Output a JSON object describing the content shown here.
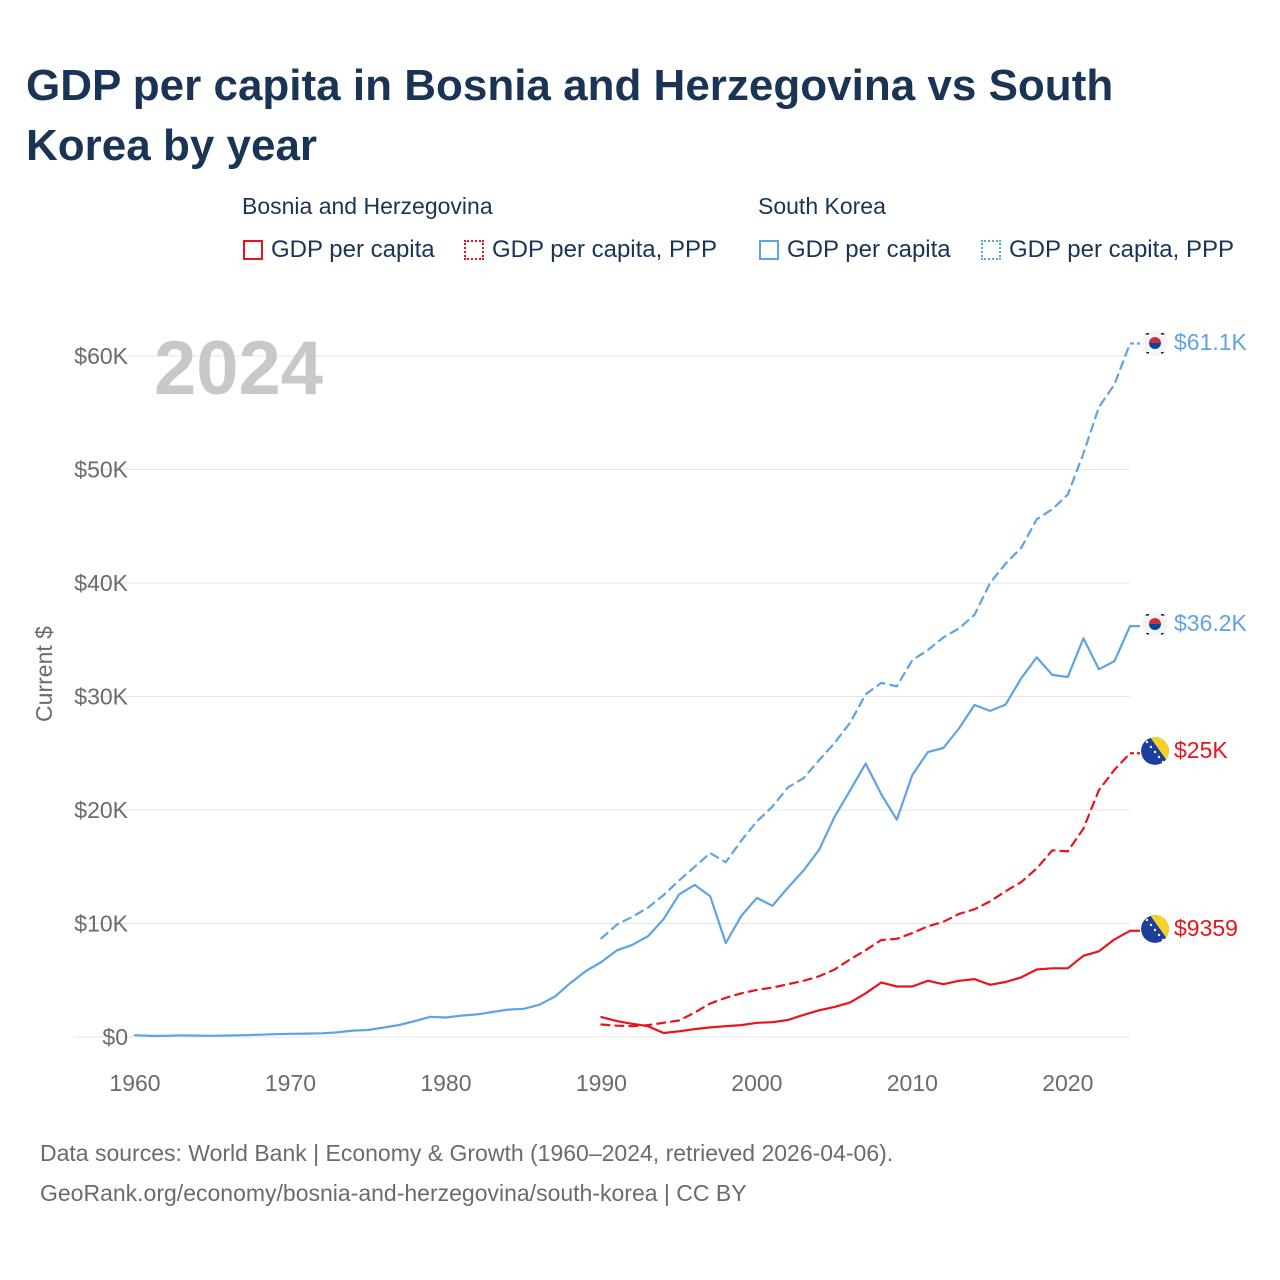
{
  "title": "GDP per capita in Bosnia and Herzegovina vs South Korea by year",
  "legend": {
    "groups": [
      {
        "name": "Bosnia and Herzegovina",
        "items": [
          "GDP per capita",
          "GDP per capita, PPP"
        ]
      },
      {
        "name": "South Korea",
        "items": [
          "GDP per capita",
          "GDP per capita, PPP"
        ]
      }
    ]
  },
  "footer": {
    "line1": "Data sources: World Bank | Economy & Growth (1960–2024, retrieved 2026-04-06).",
    "line2": "GeoRank.org/economy/bosnia-and-herzegovina/south-korea | CC BY"
  },
  "colors": {
    "bosnia": "#e8141b",
    "korea": "#5ea3e4",
    "grid": "#e6e6e6",
    "axis_text": "#6b6b6b",
    "year_watermark": "#c8c8c8"
  },
  "chart_data": {
    "type": "line",
    "title": "GDP per capita in Bosnia and Herzegovina vs South Korea by year",
    "ylabel": "Current $",
    "xlabel": "",
    "xlim": [
      1960,
      2024
    ],
    "ylim": [
      0,
      60000
    ],
    "x_ticks": [
      1960,
      1970,
      1980,
      1990,
      2000,
      2010,
      2020
    ],
    "y_ticks": [
      0,
      10000,
      20000,
      30000,
      40000,
      50000,
      60000
    ],
    "y_tick_labels": [
      "$0",
      "$10K",
      "$20K",
      "$30K",
      "$40K",
      "$50K",
      "$60K"
    ],
    "year_label": "2024",
    "grid": true,
    "series": [
      {
        "name": "South Korea GDP per capita",
        "country": "South Korea",
        "style": "solid",
        "color": "#5ea3e4",
        "end_label": "$36.2K",
        "x": [
          1960,
          1961,
          1962,
          1963,
          1964,
          1965,
          1966,
          1967,
          1968,
          1969,
          1970,
          1971,
          1972,
          1973,
          1974,
          1975,
          1976,
          1977,
          1978,
          1979,
          1980,
          1981,
          1982,
          1983,
          1984,
          1985,
          1986,
          1987,
          1988,
          1989,
          1990,
          1991,
          1992,
          1993,
          1994,
          1995,
          1996,
          1997,
          1998,
          1999,
          2000,
          2001,
          2002,
          2003,
          2004,
          2005,
          2006,
          2007,
          2008,
          2009,
          2010,
          2011,
          2012,
          2013,
          2014,
          2015,
          2016,
          2017,
          2018,
          2019,
          2020,
          2021,
          2022,
          2023,
          2024
        ],
        "y": [
          158,
          94,
          107,
          146,
          124,
          109,
          133,
          161,
          199,
          247,
          279,
          301,
          324,
          406,
          563,
          616,
          834,
          1055,
          1405,
          1784,
          1715,
          1883,
          1992,
          2199,
          2413,
          2482,
          2835,
          3555,
          4749,
          5811,
          6610,
          7637,
          8127,
          8885,
          10385,
          12564,
          13403,
          12398,
          8282,
          10672,
          12257,
          11561,
          13165,
          14673,
          16496,
          19403,
          21744,
          24086,
          21387,
          19143,
          23087,
          25098,
          25459,
          27180,
          29249,
          28732,
          29289,
          31601,
          33447,
          31902,
          31721,
          35126,
          32395,
          33121,
          36200
        ]
      },
      {
        "name": "South Korea GDP per capita, PPP",
        "country": "South Korea",
        "style": "dashed",
        "color": "#5ea3e4",
        "end_label": "$61.1K",
        "x": [
          1990,
          1991,
          1992,
          1993,
          1994,
          1995,
          1996,
          1997,
          1998,
          1999,
          2000,
          2001,
          2002,
          2003,
          2004,
          2005,
          2006,
          2007,
          2008,
          2009,
          2010,
          2011,
          2012,
          2013,
          2014,
          2015,
          2016,
          2017,
          2018,
          2019,
          2020,
          2021,
          2022,
          2023,
          2024
        ],
        "y": [
          8700,
          9900,
          10600,
          11400,
          12500,
          13800,
          15000,
          16200,
          15400,
          17300,
          19000,
          20300,
          22000,
          22800,
          24400,
          25900,
          27700,
          30200,
          31200,
          30900,
          33200,
          34100,
          35200,
          36000,
          37200,
          40000,
          41700,
          43100,
          45600,
          46500,
          47800,
          51400,
          55500,
          57500,
          61100
        ]
      },
      {
        "name": "Bosnia and Herzegovina GDP per capita",
        "country": "Bosnia and Herzegovina",
        "style": "solid",
        "color": "#e8141b",
        "end_label": "$9359",
        "x": [
          1990,
          1991,
          1992,
          1993,
          1994,
          1995,
          1996,
          1997,
          1998,
          1999,
          2000,
          2001,
          2002,
          2003,
          2004,
          2005,
          2006,
          2007,
          2008,
          2009,
          2010,
          2011,
          2012,
          2013,
          2014,
          2015,
          2016,
          2017,
          2018,
          2019,
          2020,
          2021,
          2022,
          2023,
          2024
        ],
        "y": [
          1750,
          1400,
          1150,
          950,
          350,
          500,
          700,
          850,
          950,
          1050,
          1250,
          1300,
          1500,
          1950,
          2350,
          2650,
          3050,
          3850,
          4800,
          4450,
          4450,
          4950,
          4650,
          4950,
          5100,
          4600,
          4850,
          5250,
          5950,
          6050,
          6050,
          7150,
          7550,
          8600,
          9359
        ]
      },
      {
        "name": "Bosnia and Herzegovina GDP per capita, PPP",
        "country": "Bosnia and Herzegovina",
        "style": "dashed",
        "color": "#e8141b",
        "end_label": "$25K",
        "x": [
          1990,
          1991,
          1992,
          1993,
          1994,
          1995,
          1996,
          1997,
          1998,
          1999,
          2000,
          2001,
          2002,
          2003,
          2004,
          2005,
          2006,
          2007,
          2008,
          2009,
          2010,
          2011,
          2012,
          2013,
          2014,
          2015,
          2016,
          2017,
          2018,
          2019,
          2020,
          2021,
          2022,
          2023,
          2024
        ],
        "y": [
          1100,
          1000,
          950,
          1050,
          1250,
          1450,
          2150,
          2950,
          3450,
          3850,
          4150,
          4350,
          4650,
          4950,
          5350,
          5950,
          6850,
          7650,
          8550,
          8650,
          9150,
          9750,
          10150,
          10850,
          11250,
          11950,
          12850,
          13650,
          14850,
          16450,
          16350,
          18350,
          21750,
          23550,
          25000
        ]
      }
    ]
  }
}
